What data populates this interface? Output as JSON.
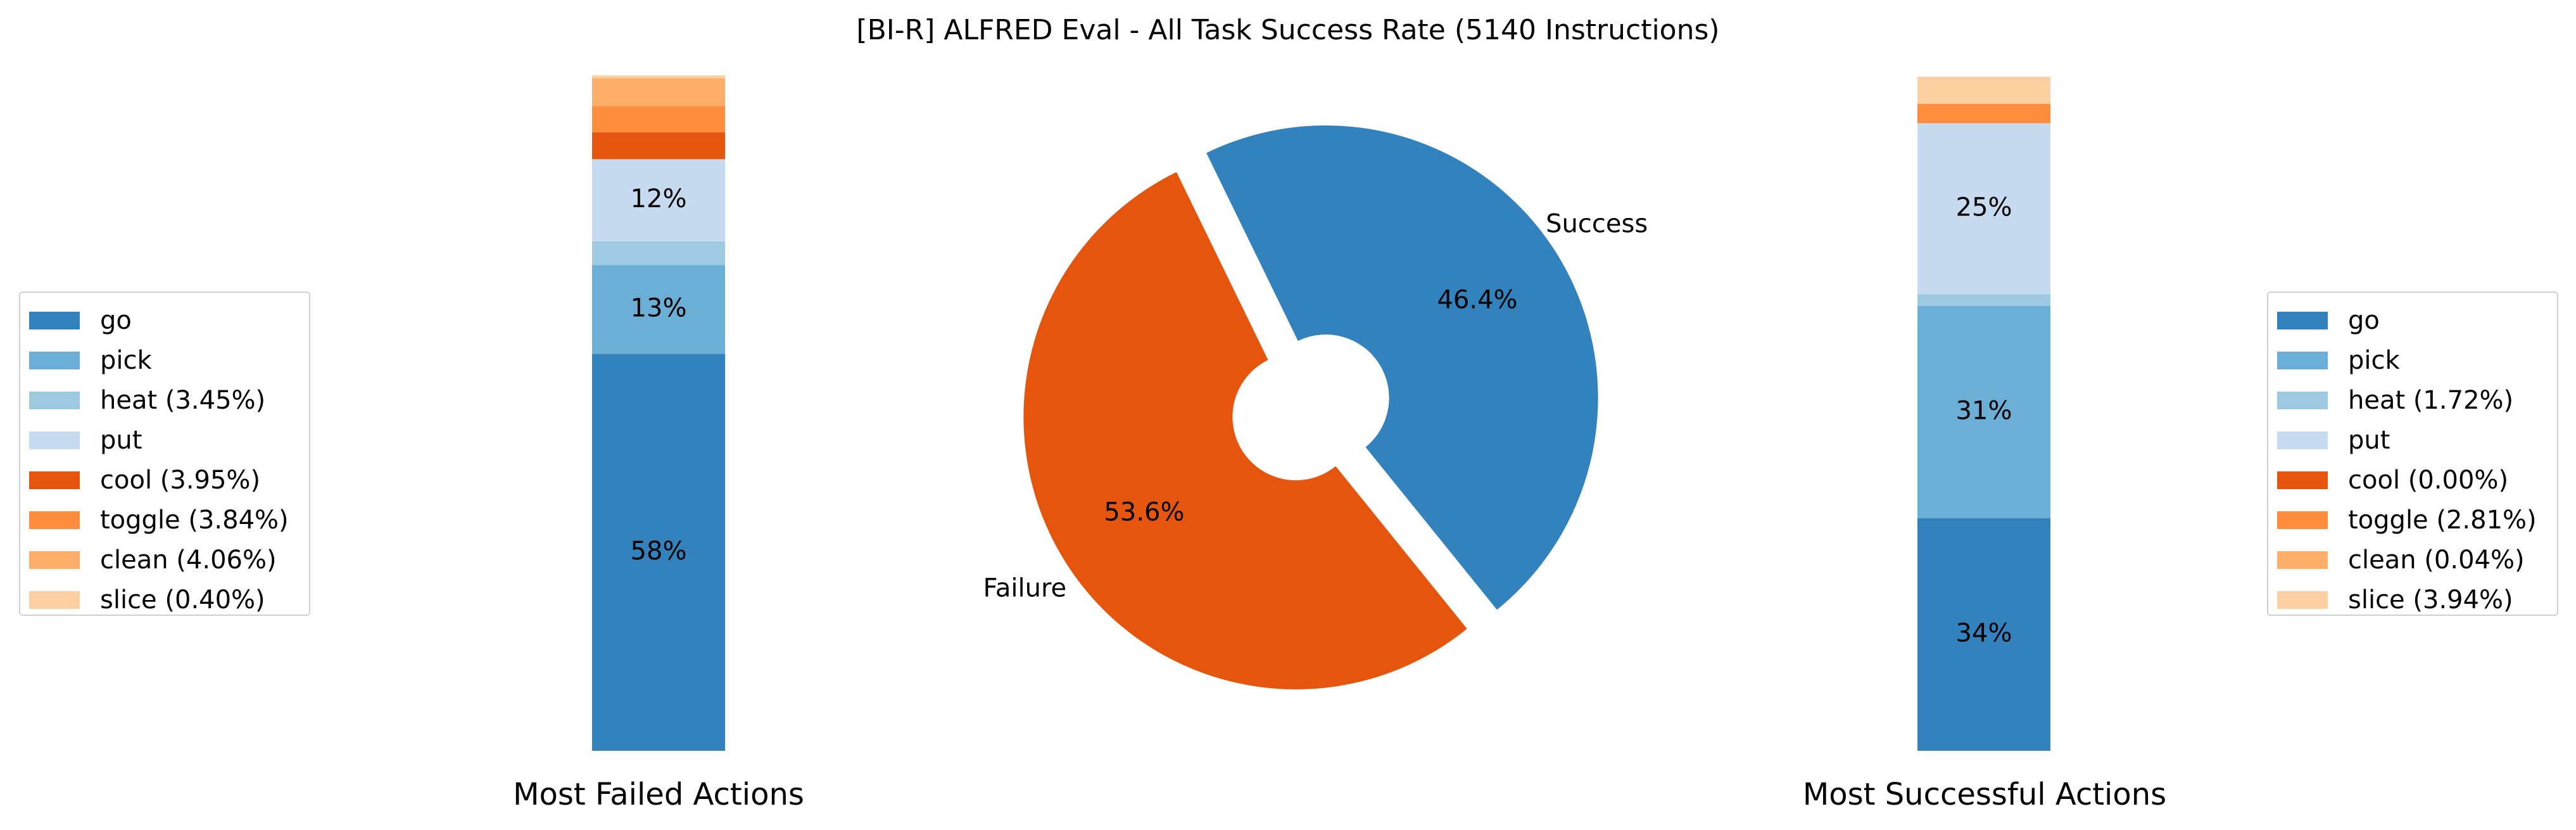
{
  "title": "[BI-R] ALFRED Eval - All Task Success Rate (5140 Instructions)",
  "chart_data": [
    {
      "type": "pie",
      "labels": [
        "Success",
        "Failure"
      ],
      "values": [
        46.4,
        53.6
      ],
      "value_labels": [
        "46.4%",
        "53.6%"
      ],
      "colors": [
        "#3182bd",
        "#e6550d"
      ],
      "exploded": true,
      "donut": true
    },
    {
      "type": "bar",
      "stacked": true,
      "xlabel": "Most Failed Actions",
      "categories": [
        "go",
        "pick",
        "heat",
        "put",
        "cool",
        "toggle",
        "clean",
        "slice"
      ],
      "values": [
        58,
        13,
        3.45,
        12,
        3.95,
        3.84,
        4.06,
        0.4
      ],
      "data_labels": [
        "58%",
        "13%",
        "",
        "12%",
        "",
        "",
        "",
        ""
      ],
      "legend": [
        "go",
        "pick",
        "heat (3.45%)",
        "put",
        "cool (3.95%)",
        "toggle (3.84%)",
        "clean (4.06%)",
        "slice (0.40%)"
      ],
      "legend_position": "left"
    },
    {
      "type": "bar",
      "stacked": true,
      "xlabel": "Most Successful Actions",
      "categories": [
        "go",
        "pick",
        "heat",
        "put",
        "cool",
        "toggle",
        "clean",
        "slice"
      ],
      "values": [
        34,
        31,
        1.72,
        25,
        0.0,
        2.81,
        0.04,
        3.94
      ],
      "data_labels": [
        "34%",
        "31%",
        "",
        "25%",
        "",
        "",
        "",
        ""
      ],
      "legend": [
        "go",
        "pick",
        "heat (1.72%)",
        "put",
        "cool (0.00%)",
        "toggle (2.81%)",
        "clean (0.04%)",
        "slice (3.94%)"
      ],
      "legend_position": "right"
    }
  ],
  "colors": {
    "go": "#3182bd",
    "pick": "#6baed6",
    "heat": "#9ecae1",
    "put": "#c6dbef",
    "cool": "#e6550d",
    "toggle": "#fd8d3c",
    "clean": "#fdae6b",
    "slice": "#fdd0a2"
  }
}
